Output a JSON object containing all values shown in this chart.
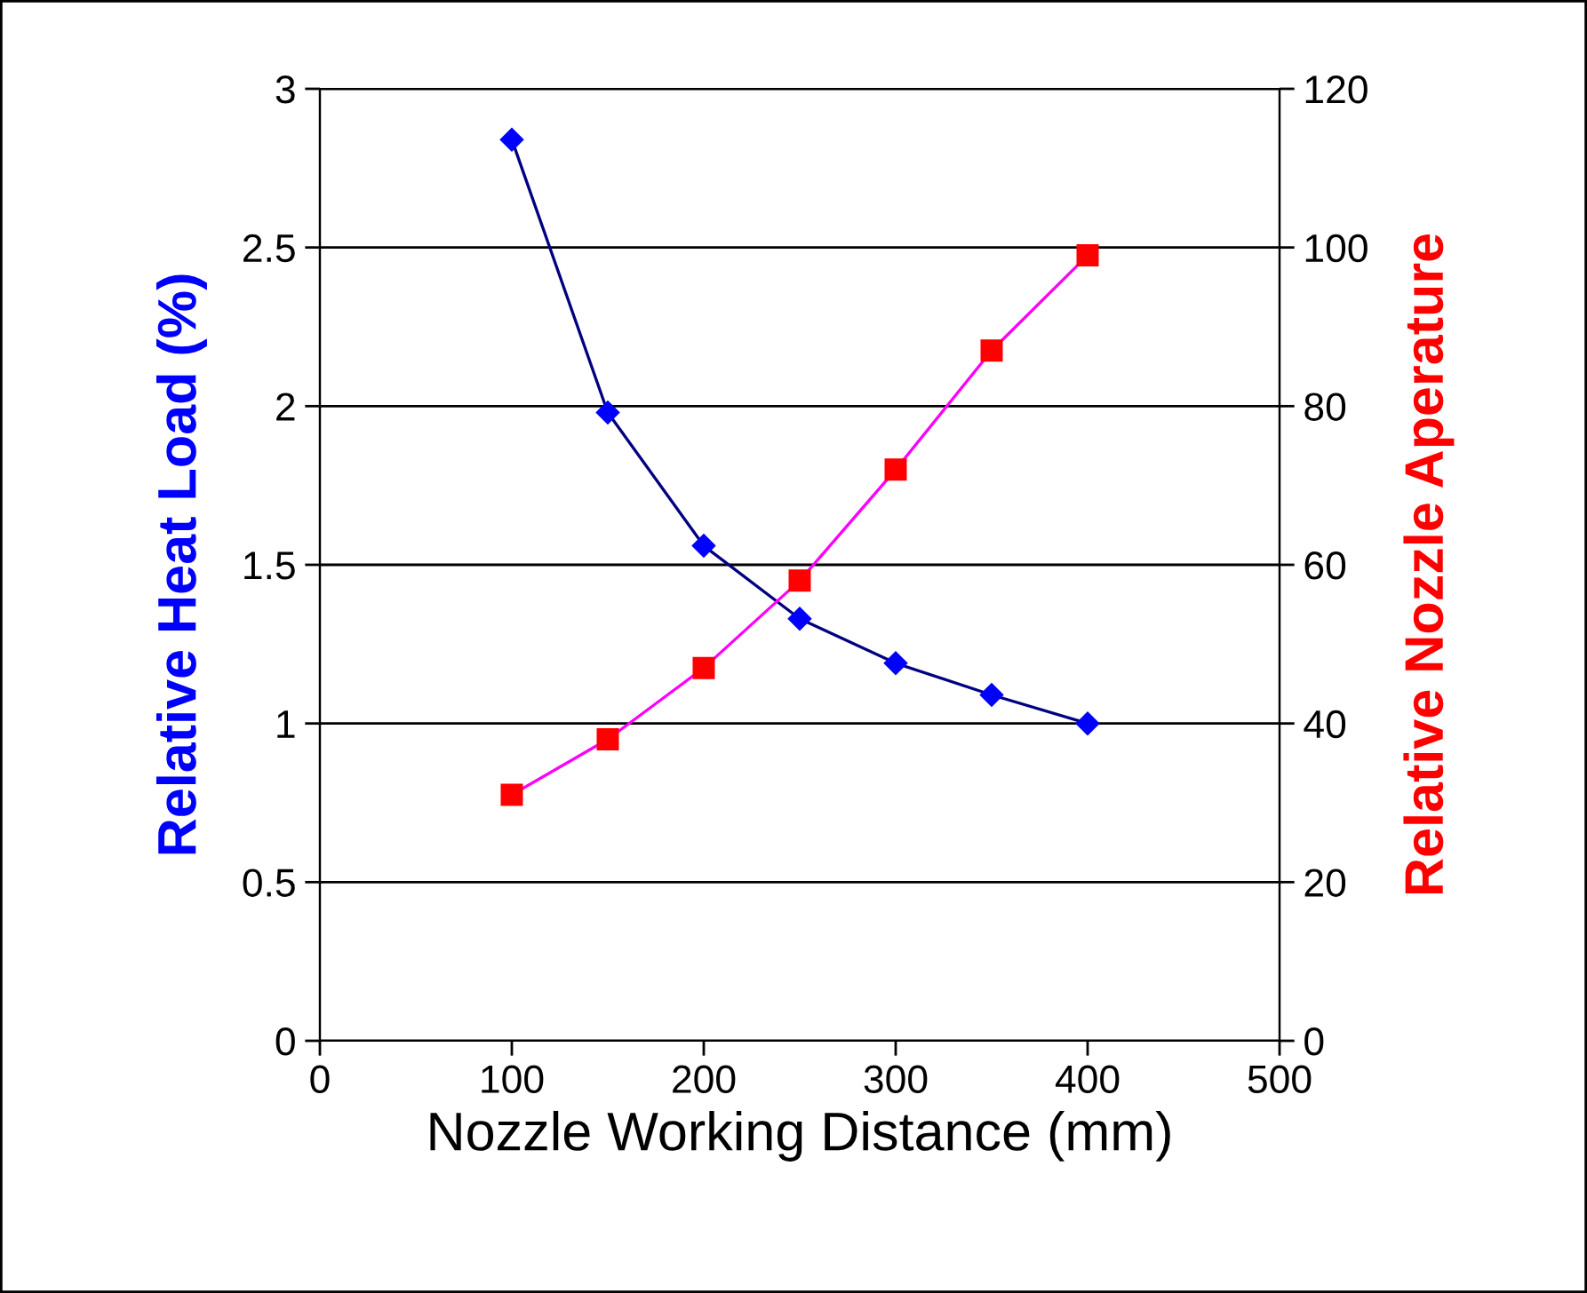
{
  "chart_data": {
    "type": "line",
    "xlabel": "Nozzle Working Distance (mm)",
    "ylabel": "Relative Heat Load (%)",
    "y2label": "Relative Nozzle Aperature",
    "x": [
      100,
      150,
      200,
      250,
      300,
      350,
      400
    ],
    "series": [
      {
        "color": "#0000ff",
        "marker": "diamond",
        "axis": "y",
        "values": [
          2.84,
          1.98,
          1.56,
          1.33,
          1.19,
          1.09,
          1.0
        ]
      },
      {
        "color": "#ff0000",
        "marker": "square",
        "axis": "y2",
        "values": [
          31,
          38,
          47,
          58,
          72,
          87,
          99
        ]
      }
    ],
    "xlim": [
      0,
      500
    ],
    "xticks": [
      0,
      100,
      200,
      300,
      400,
      500
    ],
    "ylim": [
      0,
      3
    ],
    "yticks": [
      0,
      0.5,
      1,
      1.5,
      2,
      2.5,
      3
    ],
    "y2lim": [
      0,
      120
    ],
    "y2ticks": [
      0,
      20,
      40,
      60,
      80,
      100,
      120
    ],
    "grid": "y",
    "line_style": "solid"
  }
}
